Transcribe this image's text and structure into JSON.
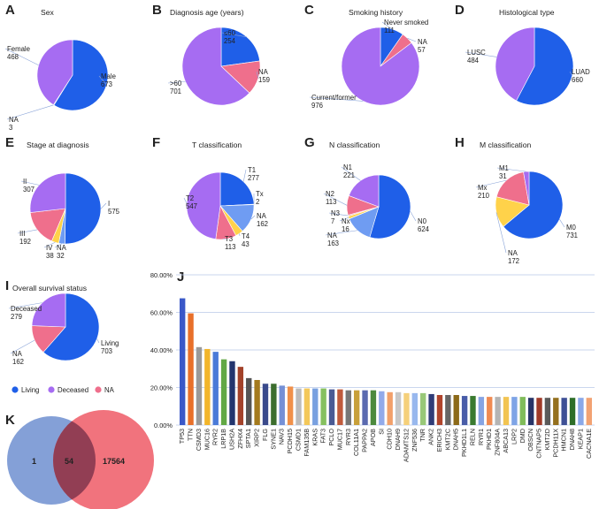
{
  "colors": {
    "living": "#1f5fe8",
    "deceased": "#a66cf2",
    "na": "#ef6f8c",
    "t2": "#a66cf2",
    "tx": "#6f9cf2",
    "t4": "#ffd24a",
    "t3": "#ef6f8c",
    "n2": "#ef6f8c",
    "venn_left": "#6f8fd0",
    "venn_right": "#ef5b66",
    "venn_overlap": "#8a3a50"
  },
  "legend": {
    "items": [
      {
        "label": "Living",
        "color": "#1f5fe8"
      },
      {
        "label": "Deceased",
        "color": "#a66cf2"
      },
      {
        "label": "NA",
        "color": "#ef6f8c"
      }
    ]
  },
  "venn": {
    "panel": "K",
    "left_only": "1",
    "overlap": "54",
    "right_only": "17564"
  },
  "chart_data": [
    {
      "panel": "A",
      "type": "pie",
      "title": "Sex",
      "slices": [
        {
          "label": "Male",
          "value": 673,
          "color": "#1f5fe8"
        },
        {
          "label": "NA",
          "value": 3,
          "color": "#ef6f8c"
        },
        {
          "label": "Female",
          "value": 468,
          "color": "#a66cf2"
        }
      ]
    },
    {
      "panel": "B",
      "type": "pie",
      "title": "Diagnosis age (years)",
      "slices": [
        {
          "label": "≤60",
          "value": 254,
          "color": "#1f5fe8"
        },
        {
          "label": "NA",
          "value": 159,
          "color": "#ef6f8c"
        },
        {
          "label": ">60",
          "value": 701,
          "color": "#a66cf2"
        }
      ]
    },
    {
      "panel": "C",
      "type": "pie",
      "title": "Smoking history",
      "slices": [
        {
          "label": "Never smoked",
          "value": 111,
          "color": "#1f5fe8"
        },
        {
          "label": "NA",
          "value": 57,
          "color": "#ef6f8c"
        },
        {
          "label": "Current/former",
          "value": 976,
          "color": "#a66cf2"
        }
      ]
    },
    {
      "panel": "D",
      "type": "pie",
      "title": "Histological type",
      "slices": [
        {
          "label": "LUAD",
          "value": 660,
          "color": "#1f5fe8"
        },
        {
          "label": "LUSC",
          "value": 484,
          "color": "#a66cf2"
        }
      ]
    },
    {
      "panel": "E",
      "type": "pie",
      "title": "Stage at diagnosis",
      "slices": [
        {
          "label": "I",
          "value": 575,
          "color": "#1f5fe8"
        },
        {
          "label": "NA",
          "value": 32,
          "color": "#6f9cf2"
        },
        {
          "label": "IV",
          "value": 38,
          "color": "#ffd24a"
        },
        {
          "label": "III",
          "value": 192,
          "color": "#ef6f8c"
        },
        {
          "label": "II",
          "value": 307,
          "color": "#a66cf2"
        }
      ]
    },
    {
      "panel": "F",
      "type": "pie",
      "title": "T classification",
      "slices": [
        {
          "label": "T1",
          "value": 277,
          "color": "#1f5fe8"
        },
        {
          "label": "Tx",
          "value": 2,
          "color": "#3d7df0"
        },
        {
          "label": "NA",
          "value": 162,
          "color": "#6f9cf2"
        },
        {
          "label": "T4",
          "value": 43,
          "color": "#ffd24a"
        },
        {
          "label": "T3",
          "value": 113,
          "color": "#ef6f8c"
        },
        {
          "label": "T2",
          "value": 547,
          "color": "#a66cf2"
        }
      ]
    },
    {
      "panel": "G",
      "type": "pie",
      "title": "N classification",
      "slices": [
        {
          "label": "N0",
          "value": 624,
          "color": "#1f5fe8"
        },
        {
          "label": "NA",
          "value": 163,
          "color": "#6f9cf2"
        },
        {
          "label": "Nx",
          "value": 16,
          "color": "#ffd24a"
        },
        {
          "label": "N3",
          "value": 7,
          "color": "#f0a0b0"
        },
        {
          "label": "N2",
          "value": 113,
          "color": "#ef6f8c"
        },
        {
          "label": "N1",
          "value": 221,
          "color": "#a66cf2"
        }
      ]
    },
    {
      "panel": "H",
      "type": "pie",
      "title": "M classification",
      "slices": [
        {
          "label": "M0",
          "value": 731,
          "color": "#1f5fe8"
        },
        {
          "label": "NA",
          "value": 172,
          "color": "#ffd24a"
        },
        {
          "label": "Mx",
          "value": 210,
          "color": "#ef6f8c"
        },
        {
          "label": "M1",
          "value": 31,
          "color": "#a66cf2"
        }
      ]
    },
    {
      "panel": "I",
      "type": "pie",
      "title": "Overall survival status",
      "slices": [
        {
          "label": "Living",
          "value": 703,
          "color": "#1f5fe8"
        },
        {
          "label": "NA",
          "value": 162,
          "color": "#ef6f8c"
        },
        {
          "label": "Deceased",
          "value": 279,
          "color": "#a66cf2"
        }
      ]
    },
    {
      "panel": "J",
      "type": "bar",
      "title": "",
      "ylim": [
        0,
        80
      ],
      "yticks": [
        "0.00%",
        "20.00%",
        "40.00%",
        "60.00%",
        "80.00%"
      ],
      "categories": [
        "TP53",
        "TTN",
        "CSMD3",
        "MUC16",
        "RYR2",
        "LRP1B",
        "USH2A",
        "ZFHX4",
        "SPTA1",
        "XIRP2",
        "FLG",
        "SYNE1",
        "NAV3",
        "PCDH15",
        "CSMD1",
        "FAM135B",
        "KRAS",
        "FAT3",
        "PCLO",
        "MUC17",
        "RYR3",
        "COL11A1",
        "PAPPA2",
        "APOB",
        "SI",
        "CDH10",
        "DNAH9",
        "ADAMTS12",
        "ZNF536",
        "TNR",
        "ANK2",
        "ERICH3",
        "KMT2C",
        "DNAH5",
        "PKHD1L1",
        "RELN",
        "RYR1",
        "PKHD1",
        "ZNF804A",
        "ABCA13",
        "LRP2",
        "DMD",
        "OBSCN",
        "CNTNAP5",
        "KMT2D",
        "PCDH11X",
        "HMCN1",
        "DNAH8",
        "KEAP1",
        "CACNA1E"
      ],
      "values": [
        67.5,
        59.5,
        41.5,
        40.5,
        39,
        35,
        34,
        31,
        25,
        24,
        22,
        22,
        21,
        20.5,
        19.5,
        19.5,
        19.5,
        19.5,
        19,
        19,
        18.5,
        18.5,
        18.5,
        18.5,
        18,
        17.5,
        17.5,
        17,
        17,
        17,
        16.5,
        16,
        16,
        16,
        15.5,
        15.5,
        15,
        15,
        15,
        15,
        15,
        15,
        14.5,
        14.5,
        14.5,
        14.5,
        14.5,
        14.5,
        14.5,
        14.5
      ],
      "colors": [
        "#3a58c8",
        "#e8702a",
        "#9a9a9a",
        "#f2b52b",
        "#4a7ad8",
        "#62a845",
        "#23356e",
        "#a3422a",
        "#555555",
        "#a47a1e",
        "#3a4a8c",
        "#3c6e2e",
        "#7590d6",
        "#f0904a",
        "#bcbcbc",
        "#f3c85a",
        "#78a0e0",
        "#86c060",
        "#4a5a94",
        "#c05a3c",
        "#777777",
        "#c8a03a",
        "#5a6ab0",
        "#4c8a3e",
        "#92aaea",
        "#f2a06a",
        "#c8c8c8",
        "#f5d07a",
        "#98b8ee",
        "#98c878",
        "#303c78",
        "#b0442c",
        "#666666",
        "#8c6a1a",
        "#485ca8",
        "#3a7a30",
        "#86a4e4",
        "#f08a52",
        "#b4b4b4",
        "#f2c452",
        "#7ea4e6",
        "#80bc5a",
        "#283468",
        "#a03a28",
        "#5a5a5a",
        "#94701e",
        "#3e5096",
        "#2e6e28",
        "#8aa8e8",
        "#f2a272"
      ]
    }
  ]
}
